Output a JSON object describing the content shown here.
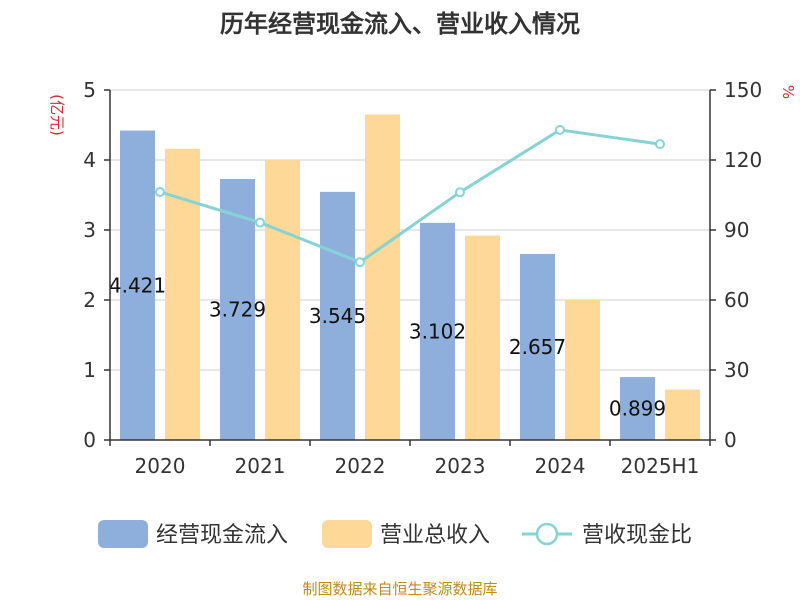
{
  "chart_data": {
    "type": "bar",
    "title": "历年经营现金流入、营业收入情况",
    "categories": [
      "2020",
      "2021",
      "2022",
      "2023",
      "2024",
      "2025H1"
    ],
    "y_left": {
      "unit": "(亿元)",
      "ylim": [
        0,
        5
      ],
      "ticks": [
        "0",
        "1",
        "2",
        "3",
        "4",
        "5"
      ]
    },
    "y_right": {
      "unit": "%",
      "ylim": [
        0,
        150
      ],
      "ticks": [
        "0",
        "30",
        "60",
        "90",
        "120",
        "150"
      ]
    },
    "series": [
      {
        "name": "经营现金流入",
        "type": "bar",
        "axis": "left",
        "color": "#8eafdc",
        "values": [
          4.421,
          3.729,
          3.545,
          3.102,
          2.657,
          0.899
        ],
        "labels": [
          "4.421",
          "3.729",
          "3.545",
          "3.102",
          "2.657",
          "0.899"
        ]
      },
      {
        "name": "营业总收入",
        "type": "bar",
        "axis": "left",
        "color": "#fdd896",
        "values": [
          4.16,
          4.0,
          4.65,
          2.92,
          2.0,
          0.72
        ]
      },
      {
        "name": "营收现金比",
        "type": "line",
        "axis": "right",
        "color": "#86d3d6",
        "values": [
          106.3,
          93.2,
          76.2,
          106.2,
          132.9,
          126.8
        ]
      }
    ],
    "grid": true,
    "legend_position": "bottom",
    "source": "制图数据来自恒生聚源数据库"
  }
}
